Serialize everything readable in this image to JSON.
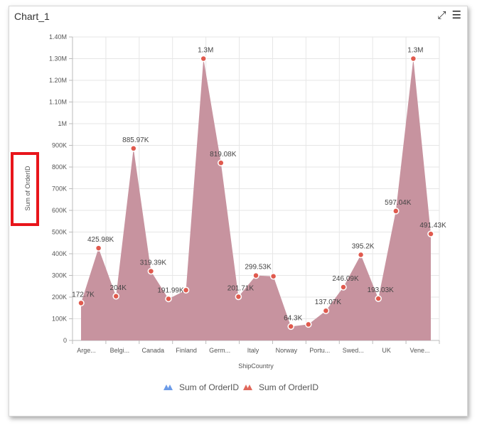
{
  "widget": {
    "title": "Chart_1",
    "expand_icon": "expand-icon",
    "menu_icon": "hamburger-menu-icon"
  },
  "colors": {
    "area": "#c7939f",
    "marker": "#e05a4e",
    "highlight_box": "#e8151b",
    "legend_1": "#6c9be8",
    "legend_2": "#e0685c"
  },
  "chart_data": {
    "type": "area",
    "xlabel": "ShipCountry",
    "ylabel": "Sum of OrderID",
    "ylim": [
      0,
      1400000
    ],
    "y_ticks": [
      "0",
      "100K",
      "200K",
      "300K",
      "400K",
      "500K",
      "600K",
      "700K",
      "800K",
      "900K",
      "1M",
      "1.10M",
      "1.20M",
      "1.30M",
      "1.40M"
    ],
    "x_tick_labels": [
      "Arge...",
      "Belgi...",
      "Canada",
      "Finland",
      "Germ...",
      "Italy",
      "Norway",
      "Portu...",
      "Swed...",
      "UK",
      "Vene..."
    ],
    "grid": true,
    "legend_position": "bottom",
    "series": [
      {
        "name": "Sum of OrderID",
        "values": [
          172700,
          425980,
          204000,
          885970,
          319390,
          191990,
          232000,
          1300000,
          819080,
          201710,
          299530,
          296000,
          64300,
          74000,
          137070,
          246090,
          395200,
          193030,
          597040,
          1300000,
          491430
        ]
      }
    ],
    "data_labels": [
      "172.7K",
      "425.98K",
      "204K",
      "885.97K",
      "319.39K",
      "191.99K",
      "",
      "1.3M",
      "819.08K",
      "201.71K",
      "299.53K",
      "",
      "64.3K",
      "",
      "137.07K",
      "246.09K",
      "395.2K",
      "193.03K",
      "597.04K",
      "1.3M",
      "491.43K"
    ],
    "legend": [
      "Sum of OrderID",
      "Sum of OrderID"
    ]
  }
}
